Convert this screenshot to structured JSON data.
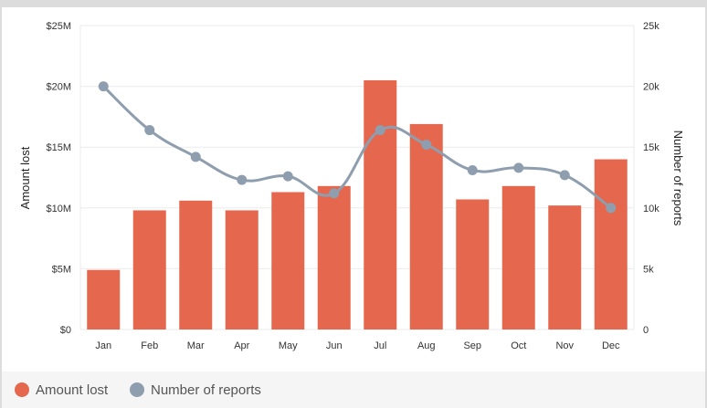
{
  "chart_data": {
    "type": "bar",
    "categories": [
      "Jan",
      "Feb",
      "Mar",
      "Apr",
      "May",
      "Jun",
      "Jul",
      "Aug",
      "Sep",
      "Oct",
      "Nov",
      "Dec"
    ],
    "series": [
      {
        "name": "Amount lost",
        "type": "bar",
        "axis": "left",
        "color": "#e5684e",
        "values": [
          4.9,
          9.8,
          10.6,
          9.8,
          11.3,
          11.8,
          20.5,
          16.9,
          10.7,
          11.8,
          10.2,
          14.0
        ]
      },
      {
        "name": "Number of reports",
        "type": "line",
        "axis": "right",
        "color": "#8e9eae",
        "values": [
          20000,
          16400,
          14200,
          12300,
          12600,
          11200,
          16400,
          15200,
          13100,
          13300,
          12700,
          10000
        ]
      }
    ],
    "y_left": {
      "label": "Amount lost",
      "range": [
        0,
        25
      ],
      "ticks": [
        0,
        5,
        10,
        15,
        20,
        25
      ],
      "tick_labels": [
        "$0",
        "$5M",
        "$10M",
        "$15M",
        "$20M",
        "$25M"
      ]
    },
    "y_right": {
      "label": "Number of reports",
      "range": [
        0,
        25000
      ],
      "ticks": [
        0,
        5000,
        10000,
        15000,
        20000,
        25000
      ],
      "tick_labels": [
        "0",
        "5k",
        "10k",
        "15k",
        "20k",
        "25k"
      ]
    },
    "grid": true,
    "legend_position": "bottom-left",
    "colors": {
      "grid": "#ebebeb",
      "axis_text": "#333333",
      "title_text": "#222222"
    }
  }
}
